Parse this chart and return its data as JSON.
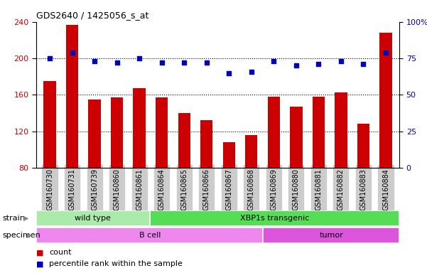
{
  "title": "GDS2640 / 1425056_s_at",
  "samples": [
    "GSM160730",
    "GSM160731",
    "GSM160739",
    "GSM160860",
    "GSM160861",
    "GSM160864",
    "GSM160865",
    "GSM160866",
    "GSM160867",
    "GSM160868",
    "GSM160869",
    "GSM160880",
    "GSM160881",
    "GSM160882",
    "GSM160883",
    "GSM160884"
  ],
  "counts": [
    175,
    237,
    155,
    157,
    167,
    157,
    140,
    132,
    108,
    116,
    158,
    147,
    158,
    163,
    128,
    228
  ],
  "percentiles": [
    75,
    79,
    73,
    72,
    75,
    72,
    72,
    72,
    65,
    66,
    73,
    70,
    71,
    73,
    71,
    79
  ],
  "ylim_left": [
    80,
    240
  ],
  "ylim_right": [
    0,
    100
  ],
  "yticks_left": [
    80,
    120,
    160,
    200,
    240
  ],
  "yticks_right": [
    0,
    25,
    50,
    75,
    100
  ],
  "bar_color": "#cc0000",
  "dot_color": "#0000bb",
  "strain_groups": [
    {
      "label": "wild type",
      "start": 0,
      "end": 5,
      "color": "#aaeaaa"
    },
    {
      "label": "XBP1s transgenic",
      "start": 5,
      "end": 16,
      "color": "#55dd55"
    }
  ],
  "specimen_groups": [
    {
      "label": "B cell",
      "start": 0,
      "end": 10,
      "color": "#ee88ee"
    },
    {
      "label": "tumor",
      "start": 10,
      "end": 16,
      "color": "#dd55dd"
    }
  ],
  "strain_label": "strain",
  "specimen_label": "specimen",
  "legend_count_label": "count",
  "legend_pct_label": "percentile rank within the sample",
  "tick_bg_color": "#cccccc",
  "bg_color": "#ffffff"
}
